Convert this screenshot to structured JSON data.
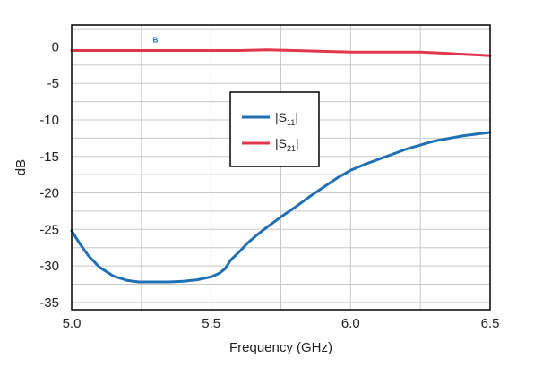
{
  "chart_data": {
    "type": "line",
    "title": "",
    "xlabel": "Frequency (GHz)",
    "ylabel": "dB",
    "xlim": [
      5.0,
      6.5
    ],
    "ylim": [
      -36,
      3
    ],
    "x_ticks": [
      5.0,
      5.5,
      6.0,
      6.5
    ],
    "x_tick_labels": [
      "5.0",
      "5.5",
      "6.0",
      "6.5"
    ],
    "x_minor_step": 0.25,
    "y_ticks": [
      0,
      -5,
      -10,
      -15,
      -20,
      -25,
      -30,
      -35
    ],
    "y_tick_labels": [
      "0",
      "-5",
      "-10",
      "-15",
      "-20",
      "-25",
      "-30",
      "-35"
    ],
    "y_grid_step": 2.5,
    "grid": true,
    "legend_position": "center",
    "annotations": [
      {
        "text": "B",
        "x": 5.3,
        "y": 1.0,
        "color": "#1f6fb5"
      }
    ],
    "series": [
      {
        "name": "|S11|",
        "name_main": "|S",
        "name_sub": "11",
        "name_end": "|",
        "color": "#1f6fb5",
        "x": [
          5.0,
          5.03,
          5.06,
          5.1,
          5.15,
          5.2,
          5.24,
          5.3,
          5.35,
          5.4,
          5.45,
          5.5,
          5.53,
          5.55,
          5.57,
          5.6,
          5.63,
          5.66,
          5.7,
          5.75,
          5.8,
          5.85,
          5.9,
          5.95,
          6.0,
          6.05,
          6.1,
          6.2,
          6.3,
          6.4,
          6.5
        ],
        "y": [
          -25.2,
          -27.0,
          -28.6,
          -30.2,
          -31.4,
          -32.0,
          -32.2,
          -32.2,
          -32.2,
          -32.1,
          -31.9,
          -31.5,
          -31.0,
          -30.4,
          -29.2,
          -28.1,
          -26.9,
          -25.9,
          -24.7,
          -23.3,
          -22.0,
          -20.6,
          -19.3,
          -18.0,
          -16.9,
          -16.1,
          -15.4,
          -14.0,
          -12.9,
          -12.2,
          -11.7
        ]
      },
      {
        "name": "|S21|",
        "name_main": "|S",
        "name_sub": "21",
        "name_end": "|",
        "color": "#e0374f",
        "x": [
          5.0,
          5.2,
          5.4,
          5.6,
          5.7,
          5.8,
          6.0,
          6.2,
          6.25,
          6.35,
          6.45,
          6.5
        ],
        "y": [
          -0.5,
          -0.5,
          -0.5,
          -0.5,
          -0.4,
          -0.5,
          -0.7,
          -0.7,
          -0.7,
          -0.9,
          -1.1,
          -1.2
        ]
      }
    ]
  }
}
